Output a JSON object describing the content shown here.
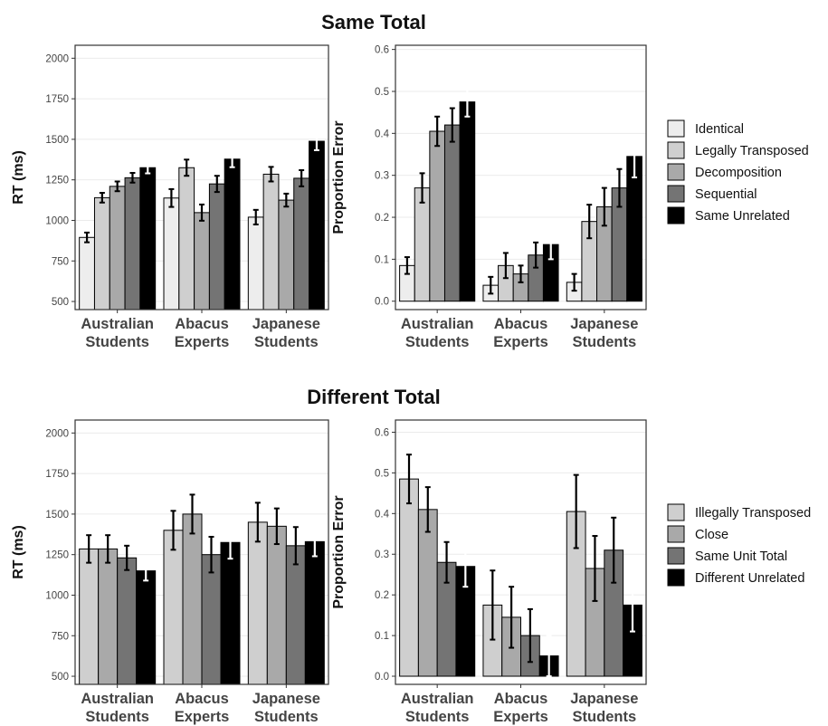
{
  "titles": {
    "top": "Same Total",
    "bottom": "Different Total"
  },
  "chart_data": [
    {
      "type": "bar",
      "group": "Same Total",
      "ylabel": "RT (ms)",
      "ylim": [
        450,
        2080
      ],
      "yticks": [
        500,
        750,
        1000,
        1250,
        1500,
        1750,
        2000
      ],
      "categories": [
        "Australian\nStudents",
        "Abacus\nExperts",
        "Japanese\nStudents"
      ],
      "series": [
        {
          "name": "Identical",
          "color": "#ededed",
          "values": [
            895,
            1138,
            1020
          ],
          "errors": [
            30,
            55,
            45
          ]
        },
        {
          "name": "Legally Transposed",
          "color": "#cfcfcf",
          "values": [
            1140,
            1325,
            1285
          ],
          "errors": [
            30,
            50,
            45
          ]
        },
        {
          "name": "Decomposition",
          "color": "#a9a9a9",
          "values": [
            1210,
            1048,
            1125
          ],
          "errors": [
            30,
            50,
            40
          ]
        },
        {
          "name": "Sequential",
          "color": "#747474",
          "values": [
            1263,
            1225,
            1260
          ],
          "errors": [
            30,
            50,
            50
          ]
        },
        {
          "name": "Same Unrelated",
          "color": "#000000",
          "values": [
            1325,
            1378,
            1488
          ],
          "errors": [
            35,
            50,
            55
          ]
        }
      ]
    },
    {
      "type": "bar",
      "group": "Same Total",
      "ylabel": "Proportion Error",
      "ylim": [
        -0.02,
        0.61
      ],
      "yticks": [
        0.0,
        0.1,
        0.2,
        0.3,
        0.4,
        0.5,
        0.6
      ],
      "categories": [
        "Australian\nStudents",
        "Abacus\nExperts",
        "Japanese\nStudents"
      ],
      "series": [
        {
          "name": "Identical",
          "color": "#ededed",
          "values": [
            0.085,
            0.038,
            0.045
          ],
          "errors": [
            0.02,
            0.02,
            0.02
          ]
        },
        {
          "name": "Legally Transposed",
          "color": "#cfcfcf",
          "values": [
            0.27,
            0.085,
            0.19
          ],
          "errors": [
            0.035,
            0.03,
            0.04
          ]
        },
        {
          "name": "Decomposition",
          "color": "#a9a9a9",
          "values": [
            0.405,
            0.065,
            0.225
          ],
          "errors": [
            0.035,
            0.02,
            0.045
          ]
        },
        {
          "name": "Sequential",
          "color": "#747474",
          "values": [
            0.42,
            0.11,
            0.27
          ],
          "errors": [
            0.04,
            0.03,
            0.045
          ]
        },
        {
          "name": "Same Unrelated",
          "color": "#000000",
          "values": [
            0.475,
            0.135,
            0.345
          ],
          "errors": [
            0.035,
            0.035,
            0.05
          ]
        }
      ]
    },
    {
      "type": "bar",
      "group": "Different Total",
      "ylabel": "RT (ms)",
      "ylim": [
        450,
        2080
      ],
      "yticks": [
        500,
        750,
        1000,
        1250,
        1500,
        1750,
        2000
      ],
      "categories": [
        "Australian\nStudents",
        "Abacus\nExperts",
        "Japanese\nStudents"
      ],
      "series": [
        {
          "name": "Illegally Transposed",
          "color": "#cfcfcf",
          "values": [
            1285,
            1400,
            1450
          ],
          "errors": [
            85,
            120,
            120
          ]
        },
        {
          "name": "Close",
          "color": "#a9a9a9",
          "values": [
            1285,
            1500,
            1425
          ],
          "errors": [
            85,
            120,
            110
          ]
        },
        {
          "name": "Same Unit Total",
          "color": "#747474",
          "values": [
            1230,
            1250,
            1305
          ],
          "errors": [
            75,
            110,
            115
          ]
        },
        {
          "name": "Different Unrelated",
          "color": "#000000",
          "values": [
            1150,
            1325,
            1330
          ],
          "errors": [
            60,
            100,
            90
          ]
        }
      ]
    },
    {
      "type": "bar",
      "group": "Different Total",
      "ylabel": "Proportion Error",
      "ylim": [
        -0.02,
        0.63
      ],
      "yticks": [
        0.0,
        0.1,
        0.2,
        0.3,
        0.4,
        0.5,
        0.6
      ],
      "categories": [
        "Australian\nStudents",
        "Abacus\nExperts",
        "Japanese\nStudents"
      ],
      "series": [
        {
          "name": "Illegally Transposed",
          "color": "#cfcfcf",
          "values": [
            0.485,
            0.175,
            0.405
          ],
          "errors": [
            0.06,
            0.085,
            0.09
          ]
        },
        {
          "name": "Close",
          "color": "#a9a9a9",
          "values": [
            0.41,
            0.145,
            0.265
          ],
          "errors": [
            0.055,
            0.075,
            0.08
          ]
        },
        {
          "name": "Same Unit Total",
          "color": "#747474",
          "values": [
            0.28,
            0.1,
            0.31
          ],
          "errors": [
            0.05,
            0.065,
            0.08
          ]
        },
        {
          "name": "Different Unrelated",
          "color": "#000000",
          "values": [
            0.27,
            0.05,
            0.175
          ],
          "errors": [
            0.05,
            0.05,
            0.065
          ]
        }
      ]
    }
  ],
  "legends": {
    "top": [
      "Identical",
      "Legally Transposed",
      "Decomposition",
      "Sequential",
      "Same Unrelated"
    ],
    "bottom": [
      "Illegally Transposed",
      "Close",
      "Same Unit Total",
      "Different Unrelated"
    ]
  }
}
